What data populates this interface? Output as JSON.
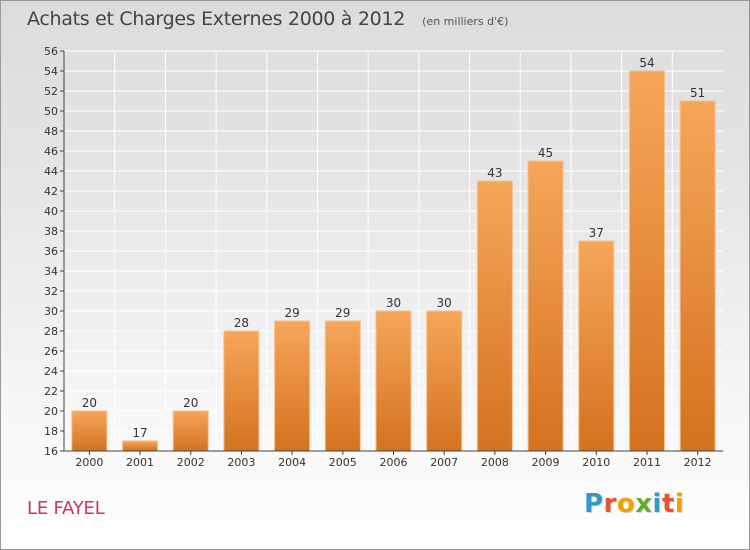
{
  "header": {
    "title": "Achats et Charges Externes 2000 à 2012",
    "subtitle": "(en milliers d'€)"
  },
  "commune": "LE FAYEL",
  "brand": {
    "text": "Proxiti",
    "letter_colors": [
      "#3399cc",
      "#e8542b",
      "#f0a000",
      "#66aa33",
      "#3399cc",
      "#e8542b",
      "#f0a000"
    ]
  },
  "colors": {
    "bar_top": "#f6a65a",
    "bar_bottom": "#d4721f",
    "bar_edge": "#f8c089",
    "axis": "#444444",
    "grid": "#ffffff",
    "title": "#444444",
    "commune": "#cc3366"
  },
  "chart_data": {
    "type": "bar",
    "title": "Achats et Charges Externes 2000 à 2012",
    "subtitle": "(en milliers d'€)",
    "categories": [
      "2000",
      "2001",
      "2002",
      "2003",
      "2004",
      "2005",
      "2006",
      "2007",
      "2008",
      "2009",
      "2010",
      "2011",
      "2012"
    ],
    "values": [
      20,
      17,
      20,
      28,
      29,
      29,
      30,
      30,
      43,
      45,
      37,
      54,
      51
    ],
    "data_labels": [
      "20",
      "17",
      "20",
      "28",
      "29",
      "29",
      "30",
      "30",
      "43",
      "45",
      "37",
      "54",
      "51"
    ],
    "ylim": [
      16,
      56
    ],
    "yticks": [
      16,
      18,
      20,
      22,
      24,
      26,
      28,
      30,
      32,
      34,
      36,
      38,
      40,
      42,
      44,
      46,
      48,
      50,
      52,
      54,
      56
    ],
    "xlabel": "",
    "ylabel": "",
    "grid": true
  }
}
